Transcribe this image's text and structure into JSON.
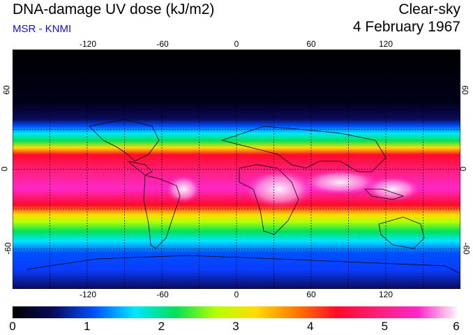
{
  "header": {
    "title": "DNA-damage UV dose (kJ/m2)",
    "subtitle": "MSR - KNMI",
    "condition": "Clear-sky",
    "date": "4 February 1967"
  },
  "map": {
    "lon_ticks": [
      "-120",
      "-60",
      "0",
      "60",
      "120"
    ],
    "lat_ticks": [
      "60",
      "0",
      "-60"
    ],
    "extent": {
      "lon": [
        -180,
        180
      ],
      "lat": [
        -90,
        90
      ]
    },
    "grid": "dashed every 30 degrees"
  },
  "colorbar": {
    "labels": [
      "0",
      "1",
      "2",
      "3",
      "4",
      "5",
      "6"
    ],
    "colors": [
      "#000000",
      "#0a0a5a",
      "#0050ff",
      "#00e6ff",
      "#00e05a",
      "#b4ff00",
      "#ffdc00",
      "#ff7800",
      "#ff0a28",
      "#ff1e78",
      "#ff28c8",
      "#ffffff"
    ]
  }
}
